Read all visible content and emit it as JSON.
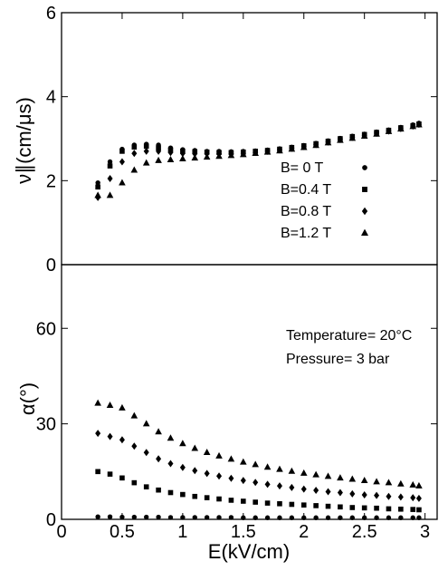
{
  "chart_data": [
    {
      "type": "scatter",
      "ylabel": "ν∥(cm/μs)",
      "ylim": [
        0,
        6
      ],
      "yticks": [
        0,
        2,
        4,
        6
      ],
      "xlim": [
        0,
        3.1
      ],
      "x": [
        0.3,
        0.4,
        0.5,
        0.6,
        0.7,
        0.8,
        0.9,
        1.0,
        1.1,
        1.2,
        1.3,
        1.4,
        1.5,
        1.6,
        1.7,
        1.8,
        1.9,
        2.0,
        2.1,
        2.2,
        2.3,
        2.4,
        2.5,
        2.6,
        2.7,
        2.8,
        2.9,
        2.95
      ],
      "series": [
        {
          "name": "B=  0 T",
          "marker": "circle",
          "values": [
            1.95,
            2.45,
            2.75,
            2.85,
            2.87,
            2.85,
            2.78,
            2.74,
            2.72,
            2.7,
            2.7,
            2.69,
            2.7,
            2.71,
            2.73,
            2.76,
            2.8,
            2.84,
            2.89,
            2.95,
            3.01,
            3.06,
            3.11,
            3.16,
            3.21,
            3.27,
            3.33,
            3.37
          ]
        },
        {
          "name": "B=0.4 T",
          "marker": "square",
          "values": [
            1.85,
            2.35,
            2.7,
            2.8,
            2.82,
            2.78,
            2.73,
            2.7,
            2.69,
            2.68,
            2.67,
            2.67,
            2.68,
            2.7,
            2.72,
            2.75,
            2.79,
            2.83,
            2.88,
            2.94,
            3.0,
            3.05,
            3.1,
            3.15,
            3.2,
            3.26,
            3.31,
            3.35
          ]
        },
        {
          "name": "B=0.8 T",
          "marker": "diamond",
          "values": [
            1.6,
            2.05,
            2.45,
            2.65,
            2.7,
            2.7,
            2.67,
            2.65,
            2.64,
            2.64,
            2.64,
            2.64,
            2.65,
            2.67,
            2.7,
            2.73,
            2.77,
            2.81,
            2.86,
            2.92,
            2.98,
            3.03,
            3.08,
            3.13,
            3.18,
            3.24,
            3.3,
            3.34
          ]
        },
        {
          "name": "B=1.2 T",
          "marker": "triangle",
          "values": [
            1.65,
            1.65,
            1.95,
            2.25,
            2.42,
            2.48,
            2.5,
            2.52,
            2.54,
            2.56,
            2.58,
            2.6,
            2.62,
            2.65,
            2.68,
            2.71,
            2.75,
            2.79,
            2.84,
            2.9,
            2.96,
            3.01,
            3.06,
            3.11,
            3.17,
            3.23,
            3.29,
            3.33
          ]
        }
      ]
    },
    {
      "type": "scatter",
      "xlabel": "E(kV/cm)",
      "ylabel": "α(°)",
      "ylim": [
        0,
        80
      ],
      "yticks": [
        0,
        30,
        60
      ],
      "xlim": [
        0,
        3.1
      ],
      "xticks": [
        0,
        0.5,
        1,
        1.5,
        2,
        2.5,
        3
      ],
      "xticklabels": [
        "0",
        "0.5",
        "1",
        "1.5",
        "2",
        "2.5",
        "3"
      ],
      "x": [
        0.3,
        0.4,
        0.5,
        0.6,
        0.7,
        0.8,
        0.9,
        1.0,
        1.1,
        1.2,
        1.3,
        1.4,
        1.5,
        1.6,
        1.7,
        1.8,
        1.9,
        2.0,
        2.1,
        2.2,
        2.3,
        2.4,
        2.5,
        2.6,
        2.7,
        2.8,
        2.9,
        2.95
      ],
      "series": [
        {
          "name": "B=  0 T",
          "marker": "circle",
          "values": [
            0.8,
            0.8,
            0.7,
            0.7,
            0.7,
            0.7,
            0.6,
            0.6,
            0.6,
            0.6,
            0.6,
            0.6,
            0.5,
            0.5,
            0.5,
            0.5,
            0.5,
            0.5,
            0.5,
            0.5,
            0.5,
            0.5,
            0.5,
            0.5,
            0.5,
            0.5,
            0.5,
            0.5
          ]
        },
        {
          "name": "B=0.4 T",
          "marker": "square",
          "values": [
            15.0,
            14.2,
            13.0,
            11.5,
            10.2,
            9.2,
            8.4,
            7.8,
            7.2,
            6.8,
            6.4,
            6.0,
            5.7,
            5.4,
            5.1,
            4.9,
            4.7,
            4.5,
            4.3,
            4.1,
            3.9,
            3.7,
            3.6,
            3.5,
            3.3,
            3.2,
            3.1,
            3.0
          ]
        },
        {
          "name": "B=0.8 T",
          "marker": "diamond",
          "values": [
            27.0,
            26.0,
            25.0,
            23.0,
            21.0,
            19.0,
            17.5,
            16.3,
            15.3,
            14.4,
            13.6,
            12.9,
            12.2,
            11.6,
            11.0,
            10.5,
            10.0,
            9.5,
            9.1,
            8.7,
            8.4,
            8.0,
            7.7,
            7.5,
            7.2,
            7.0,
            6.8,
            6.6
          ]
        },
        {
          "name": "B=1.2 T",
          "marker": "triangle",
          "values": [
            36.5,
            35.8,
            35.0,
            32.5,
            30.0,
            27.5,
            25.5,
            23.8,
            22.3,
            21.0,
            19.9,
            18.9,
            18.0,
            17.2,
            16.4,
            15.7,
            15.1,
            14.5,
            14.0,
            13.5,
            13.0,
            12.6,
            12.2,
            11.8,
            11.5,
            11.1,
            10.8,
            10.5
          ]
        }
      ],
      "annotations": [
        "Temperature= 20°C",
        "Pressure= 3 bar"
      ]
    }
  ]
}
